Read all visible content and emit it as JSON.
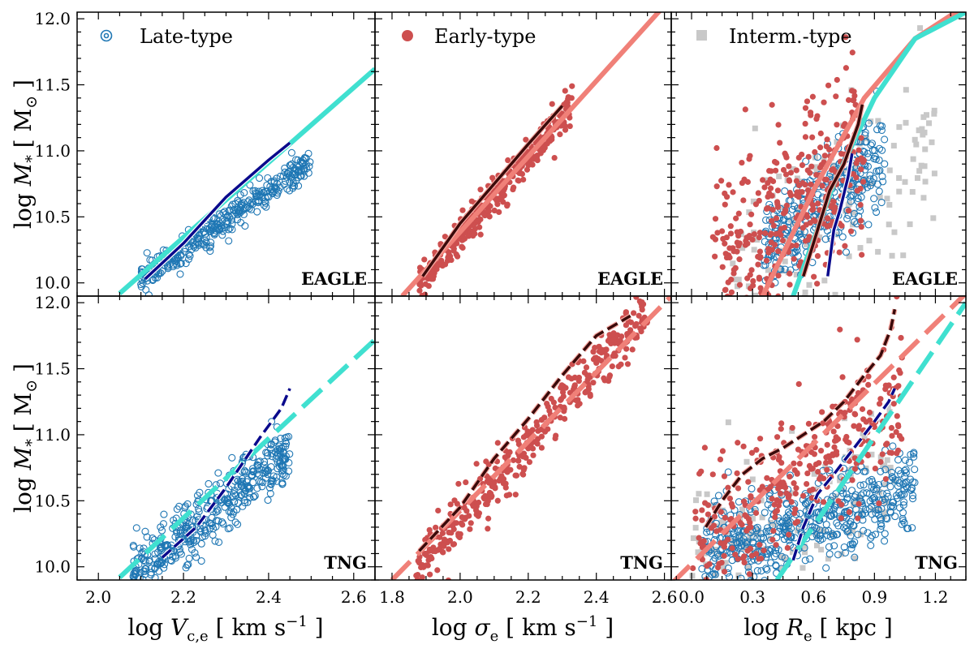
{
  "figure": {
    "xlabels": [
      "log V_c,e [ km s⁻¹ ]",
      "log σ_e [ km s⁻¹ ]",
      "log R_e [ kpc ]"
    ],
    "ylabel": "log M_* [ M_⊙ ]",
    "row_labels": [
      "EAGLE",
      "TNG"
    ],
    "legend": [
      {
        "label": "Late-type",
        "marker": "spiral-icon",
        "color": "#1f77b4"
      },
      {
        "label": "Early-type",
        "marker": "filled-circle",
        "color": "#cd4f4f"
      },
      {
        "label": "Interm.-type",
        "marker": "filled-square",
        "color": "#c8c8c8"
      }
    ],
    "colors": {
      "late": "#1f77b4",
      "early": "#cd4f4f",
      "interm": "#c8c8c8",
      "fit_late": "#40e0d0",
      "fit_early": "#f08078",
      "median_late": "#0a0a8c",
      "median_early": "#3a0a0a"
    }
  },
  "chart_data": [
    {
      "type": "scatter",
      "panel": "EAGLE velocity",
      "tag": "EAGLE",
      "xlim": [
        1.95,
        2.65
      ],
      "ylim": [
        9.9,
        12.05
      ],
      "xticks": [
        "2.0",
        "2.2",
        "2.4",
        "2.6"
      ],
      "yticks": [
        "10.0",
        "10.5",
        "11.0",
        "11.5",
        "12.0"
      ],
      "scatter": [
        {
          "population": "late",
          "x_range": [
            2.1,
            2.5
          ],
          "slope": 2.25,
          "intercept": 5.3,
          "scatter": 0.06,
          "n": 350
        }
      ],
      "lines": [
        {
          "name": "fit late",
          "style": "solid",
          "x": [
            2.05,
            2.65
          ],
          "y": [
            9.92,
            11.62
          ]
        },
        {
          "name": "median late",
          "style": "solid",
          "x": [
            2.11,
            2.2,
            2.3,
            2.4,
            2.45
          ],
          "y": [
            10.03,
            10.3,
            10.65,
            10.93,
            11.06
          ]
        }
      ]
    },
    {
      "type": "scatter",
      "panel": "EAGLE dispersion",
      "tag": "EAGLE",
      "xlim": [
        1.75,
        2.62
      ],
      "ylim": [
        9.9,
        12.05
      ],
      "xticks": [
        "1.8",
        "2.0",
        "2.2",
        "2.4",
        "2.6"
      ],
      "yticks": [],
      "scatter": [
        {
          "population": "early",
          "x_range": [
            1.88,
            2.33
          ],
          "slope": 3.0,
          "intercept": 4.35,
          "scatter": 0.07,
          "n": 340
        }
      ],
      "lines": [
        {
          "name": "fit early",
          "style": "solid",
          "x": [
            1.83,
            2.6
          ],
          "y": [
            9.9,
            12.1
          ]
        },
        {
          "name": "median early",
          "style": "solid",
          "x": [
            1.89,
            2.0,
            2.1,
            2.2,
            2.3
          ],
          "y": [
            10.05,
            10.45,
            10.75,
            11.05,
            11.34
          ]
        }
      ]
    },
    {
      "type": "scatter",
      "panel": "EAGLE radius",
      "tag": "EAGLE",
      "xlim": [
        -0.1,
        1.35
      ],
      "ylim": [
        9.9,
        12.05
      ],
      "xticks": [
        "0.0",
        "0.3",
        "0.6",
        "0.9",
        "1.2"
      ],
      "yticks": [],
      "scatter": [
        {
          "population": "interm",
          "x_range": [
            0.2,
            1.2
          ],
          "slope": 1.0,
          "intercept": 9.9,
          "scatter": 0.35,
          "n": 130
        },
        {
          "population": "late",
          "x_range": [
            0.35,
            0.95
          ],
          "slope": 1.2,
          "intercept": 9.8,
          "scatter": 0.18,
          "n": 320
        },
        {
          "population": "early",
          "x_range": [
            0.1,
            0.85
          ],
          "slope": 1.2,
          "intercept": 9.95,
          "scatter": 0.32,
          "n": 380
        }
      ],
      "lines": [
        {
          "name": "fit early",
          "style": "solid",
          "x": [
            0.35,
            0.6,
            0.85,
            1.1,
            1.35
          ],
          "y": [
            9.9,
            10.7,
            11.4,
            11.85,
            12.1
          ]
        },
        {
          "name": "fit late",
          "style": "solid",
          "x": [
            0.5,
            0.7,
            0.9,
            1.1,
            1.35
          ],
          "y": [
            9.9,
            10.75,
            11.4,
            11.85,
            12.05
          ]
        },
        {
          "name": "median early",
          "style": "solid",
          "x": [
            0.55,
            0.62,
            0.68,
            0.75,
            0.82,
            0.84
          ],
          "y": [
            10.05,
            10.4,
            10.7,
            10.9,
            11.2,
            11.35
          ]
        },
        {
          "name": "median late",
          "style": "solid",
          "x": [
            0.67,
            0.7,
            0.73,
            0.77,
            0.79
          ],
          "y": [
            10.05,
            10.4,
            10.55,
            10.8,
            10.98
          ]
        }
      ]
    },
    {
      "type": "scatter",
      "panel": "TNG velocity",
      "tag": "TNG",
      "xlim": [
        1.95,
        2.65
      ],
      "ylim": [
        9.9,
        12.05
      ],
      "xticks": [
        "2.0",
        "2.2",
        "2.4",
        "2.6"
      ],
      "yticks": [
        "10.0",
        "10.5",
        "11.0",
        "11.5",
        "12.0"
      ],
      "scatter": [
        {
          "population": "late",
          "x_range": [
            2.08,
            2.45
          ],
          "slope": 2.5,
          "intercept": 4.75,
          "scatter": 0.12,
          "n": 420
        }
      ],
      "lines": [
        {
          "name": "fit late",
          "style": "dashed",
          "x": [
            2.05,
            2.65
          ],
          "y": [
            9.92,
            11.72
          ]
        },
        {
          "name": "median late",
          "style": "dashed",
          "x": [
            2.15,
            2.23,
            2.3,
            2.38,
            2.43,
            2.45
          ],
          "y": [
            10.07,
            10.3,
            10.6,
            10.98,
            11.2,
            11.35
          ]
        }
      ]
    },
    {
      "type": "scatter",
      "panel": "TNG dispersion",
      "tag": "TNG",
      "xlim": [
        1.75,
        2.62
      ],
      "ylim": [
        9.9,
        12.05
      ],
      "xticks": [
        "1.8",
        "2.0",
        "2.2",
        "2.4",
        "2.6"
      ],
      "yticks": [],
      "scatter": [
        {
          "population": "early",
          "x_range": [
            1.87,
            2.55
          ],
          "slope": 2.9,
          "intercept": 4.55,
          "scatter": 0.1,
          "n": 380
        }
      ],
      "lines": [
        {
          "name": "fit early",
          "style": "dashed",
          "x": [
            1.8,
            2.62
          ],
          "y": [
            9.9,
            12.05
          ]
        },
        {
          "name": "median early",
          "style": "dashed",
          "x": [
            1.88,
            2.0,
            2.1,
            2.2,
            2.3,
            2.4,
            2.5
          ],
          "y": [
            10.12,
            10.45,
            10.82,
            11.12,
            11.45,
            11.75,
            11.9
          ]
        }
      ]
    },
    {
      "type": "scatter",
      "panel": "TNG radius",
      "tag": "TNG",
      "xlim": [
        -0.1,
        1.35
      ],
      "ylim": [
        9.9,
        12.05
      ],
      "xticks": [
        "0.0",
        "0.3",
        "0.6",
        "0.9",
        "1.2"
      ],
      "yticks": [],
      "scatter": [
        {
          "population": "interm",
          "x_range": [
            0.0,
            1.0
          ],
          "slope": 0.6,
          "intercept": 10.1,
          "scatter": 0.25,
          "n": 160
        },
        {
          "population": "late",
          "x_range": [
            0.05,
            1.1
          ],
          "slope": 0.5,
          "intercept": 10.05,
          "scatter": 0.16,
          "n": 520
        },
        {
          "population": "early",
          "x_range": [
            0.0,
            1.05
          ],
          "slope": 1.1,
          "intercept": 10.15,
          "scatter": 0.28,
          "n": 330
        }
      ],
      "lines": [
        {
          "name": "fit early",
          "style": "dashed",
          "x": [
            -0.1,
            1.35
          ],
          "y": [
            9.87,
            12.07
          ]
        },
        {
          "name": "fit late",
          "style": "dashed",
          "x": [
            0.42,
            1.35
          ],
          "y": [
            9.9,
            12.0
          ]
        },
        {
          "name": "median early",
          "style": "dashed",
          "x": [
            0.07,
            0.15,
            0.25,
            0.35,
            0.45,
            0.55,
            0.65,
            0.75,
            0.85,
            0.93,
            0.98,
            1.0
          ],
          "y": [
            10.3,
            10.5,
            10.7,
            10.82,
            10.9,
            11.0,
            11.1,
            11.25,
            11.45,
            11.6,
            11.8,
            11.95
          ]
        },
        {
          "name": "median late",
          "style": "dashed",
          "x": [
            0.5,
            0.55,
            0.62,
            0.7,
            0.8,
            0.9,
            0.97,
            1.0
          ],
          "y": [
            10.05,
            10.3,
            10.55,
            10.7,
            10.9,
            11.1,
            11.25,
            11.35
          ]
        }
      ]
    }
  ]
}
